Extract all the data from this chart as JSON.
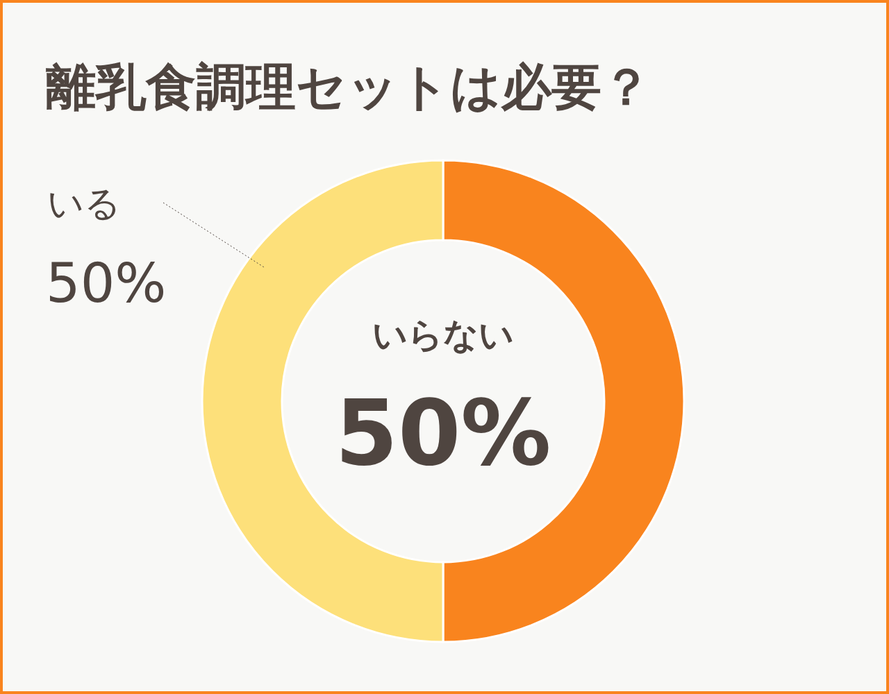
{
  "chart_data": {
    "type": "donut",
    "title": "離乳食調理セットは必要？",
    "categories": [
      "いらない",
      "いる"
    ],
    "values": [
      50,
      50
    ],
    "colors": [
      "#f9841e",
      "#fde07a"
    ],
    "value_labels": [
      "50%",
      "50%"
    ]
  }
}
